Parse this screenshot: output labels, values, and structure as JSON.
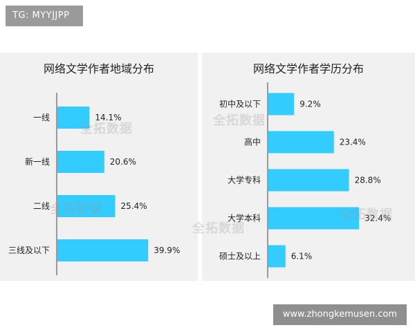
{
  "top_badge": "TG: MYYJJPP",
  "bottom_badge": "www.zhongkemusen.com",
  "watermark_text": "全拓数据",
  "bar_color": "#33ccff",
  "chart_data": [
    {
      "type": "bar",
      "orientation": "horizontal",
      "title": "网络文学作者地域分布",
      "categories": [
        "一线",
        "新一线",
        "二线",
        "三线及以下"
      ],
      "values": [
        14.1,
        20.6,
        25.4,
        39.9
      ],
      "value_labels": [
        "14.1%",
        "20.6%",
        "25.4%",
        "39.9%"
      ],
      "xlim": [
        0,
        45
      ]
    },
    {
      "type": "bar",
      "orientation": "horizontal",
      "title": "网络文学作者学历分布",
      "categories": [
        "初中及以下",
        "高中",
        "大学专科",
        "大学本科",
        "硕士及以上"
      ],
      "values": [
        9.2,
        23.4,
        28.8,
        32.4,
        6.1
      ],
      "value_labels": [
        "9.2%",
        "23.4%",
        "28.8%",
        "32.4%",
        "6.1%"
      ],
      "xlim": [
        0,
        42
      ]
    }
  ]
}
